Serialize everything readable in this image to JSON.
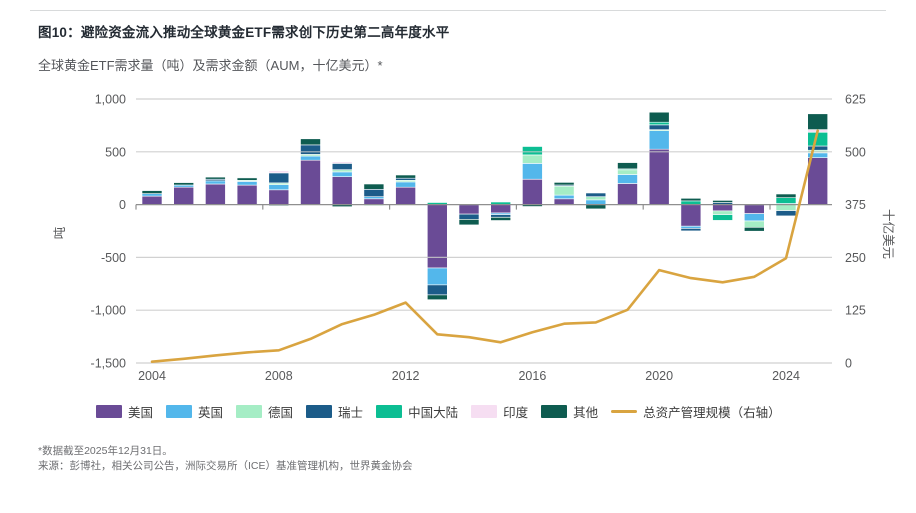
{
  "figure": {
    "title": "图10：避险资金流入推动全球黄金ETF需求创下历史第二高年度水平",
    "subtitle": "全球黄金ETF需求量（吨）及需求金额（AUM，十亿美元）*",
    "footnote_asof": "*数据截至2025年12月31日。",
    "footnote_source": "来源：彭博社，相关公司公告，洲际交易所（ICE）基准管理机构，世界黄金协会"
  },
  "chart_data": {
    "type": "bar",
    "subtype": "stacked-bars-with-line-overlay",
    "x": [
      2004,
      2005,
      2006,
      2007,
      2008,
      2009,
      2010,
      2011,
      2012,
      2013,
      2014,
      2015,
      2016,
      2017,
      2018,
      2019,
      2020,
      2021,
      2022,
      2023,
      2024,
      2025
    ],
    "series": [
      {
        "name": "美国",
        "color": "#6a4b96",
        "values": [
          80,
          165,
          195,
          185,
          140,
          420,
          265,
          55,
          165,
          -600,
          -90,
          -80,
          240,
          55,
          0,
          200,
          525,
          -205,
          -60,
          -85,
          0,
          445
        ]
      },
      {
        "name": "英国",
        "color": "#53b7eb",
        "values": [
          25,
          20,
          30,
          35,
          50,
          40,
          45,
          20,
          50,
          -160,
          0,
          -15,
          150,
          35,
          45,
          85,
          175,
          -20,
          0,
          -70,
          10,
          45
        ]
      },
      {
        "name": "德国",
        "color": "#a5edc5",
        "values": [
          0,
          0,
          0,
          10,
          15,
          15,
          20,
          -10,
          15,
          0,
          0,
          0,
          80,
          85,
          30,
          50,
          10,
          0,
          -35,
          -60,
          -57,
          25
        ]
      },
      {
        "name": "瑞士",
        "color": "#1c5c89",
        "values": [
          0,
          0,
          15,
          0,
          95,
          90,
          60,
          70,
          20,
          -95,
          -50,
          -25,
          0,
          10,
          35,
          0,
          45,
          -24,
          20,
          0,
          -50,
          40
        ]
      },
      {
        "name": "中国大陆",
        "color": "#0cbe93",
        "values": [
          0,
          0,
          0,
          0,
          0,
          0,
          0,
          0,
          0,
          20,
          8,
          25,
          80,
          0,
          0,
          3,
          25,
          35,
          -55,
          0,
          55,
          130
        ]
      },
      {
        "name": "印度",
        "color": "#f6def2",
        "values": [
          0,
          0,
          0,
          0,
          20,
          0,
          15,
          0,
          0,
          0,
          0,
          0,
          0,
          -7,
          0,
          0,
          0,
          0,
          0,
          8,
          0,
          25
        ]
      },
      {
        "name": "其他",
        "color": "#0e5c50",
        "values": [
          28,
          23,
          20,
          23,
          -10,
          58,
          -20,
          50,
          30,
          -45,
          -52,
          -30,
          -18,
          25,
          -41,
          60,
          95,
          25,
          20,
          -37,
          35,
          150
        ]
      }
    ],
    "line_series": {
      "name": "总资产管理规模（右轴）",
      "color": "#d9a440",
      "axis": "right",
      "values": [
        3,
        10,
        18,
        25,
        30,
        57,
        92,
        114,
        143,
        68,
        61,
        49,
        73,
        93,
        96,
        126,
        220,
        201,
        191,
        204,
        248,
        550
      ]
    },
    "ylabel_left": "吨",
    "ylabel_right": "十亿美元",
    "ylim_left": [
      -1500,
      1000
    ],
    "ylim_right": [
      0,
      625
    ],
    "y_left_ticks": [
      "1,000",
      "500",
      "0",
      "-500",
      "-1,000",
      "-1,500"
    ],
    "y_left_tick_values": [
      1000,
      500,
      0,
      -500,
      -1000,
      -1500
    ],
    "y_right_ticks": [
      "625",
      "500",
      "375",
      "250",
      "125",
      "0"
    ],
    "x_tick_labels": [
      "2004",
      "2008",
      "2012",
      "2016",
      "2020",
      "2024"
    ],
    "x_tick_years": [
      2004,
      2008,
      2012,
      2016,
      2020,
      2024
    ],
    "grid": "horizontal",
    "legend_position": "bottom",
    "colors": {
      "grid": "#c9c9c9",
      "zero_axis": "#8f8f8f",
      "axis_text": "#58595b"
    }
  }
}
